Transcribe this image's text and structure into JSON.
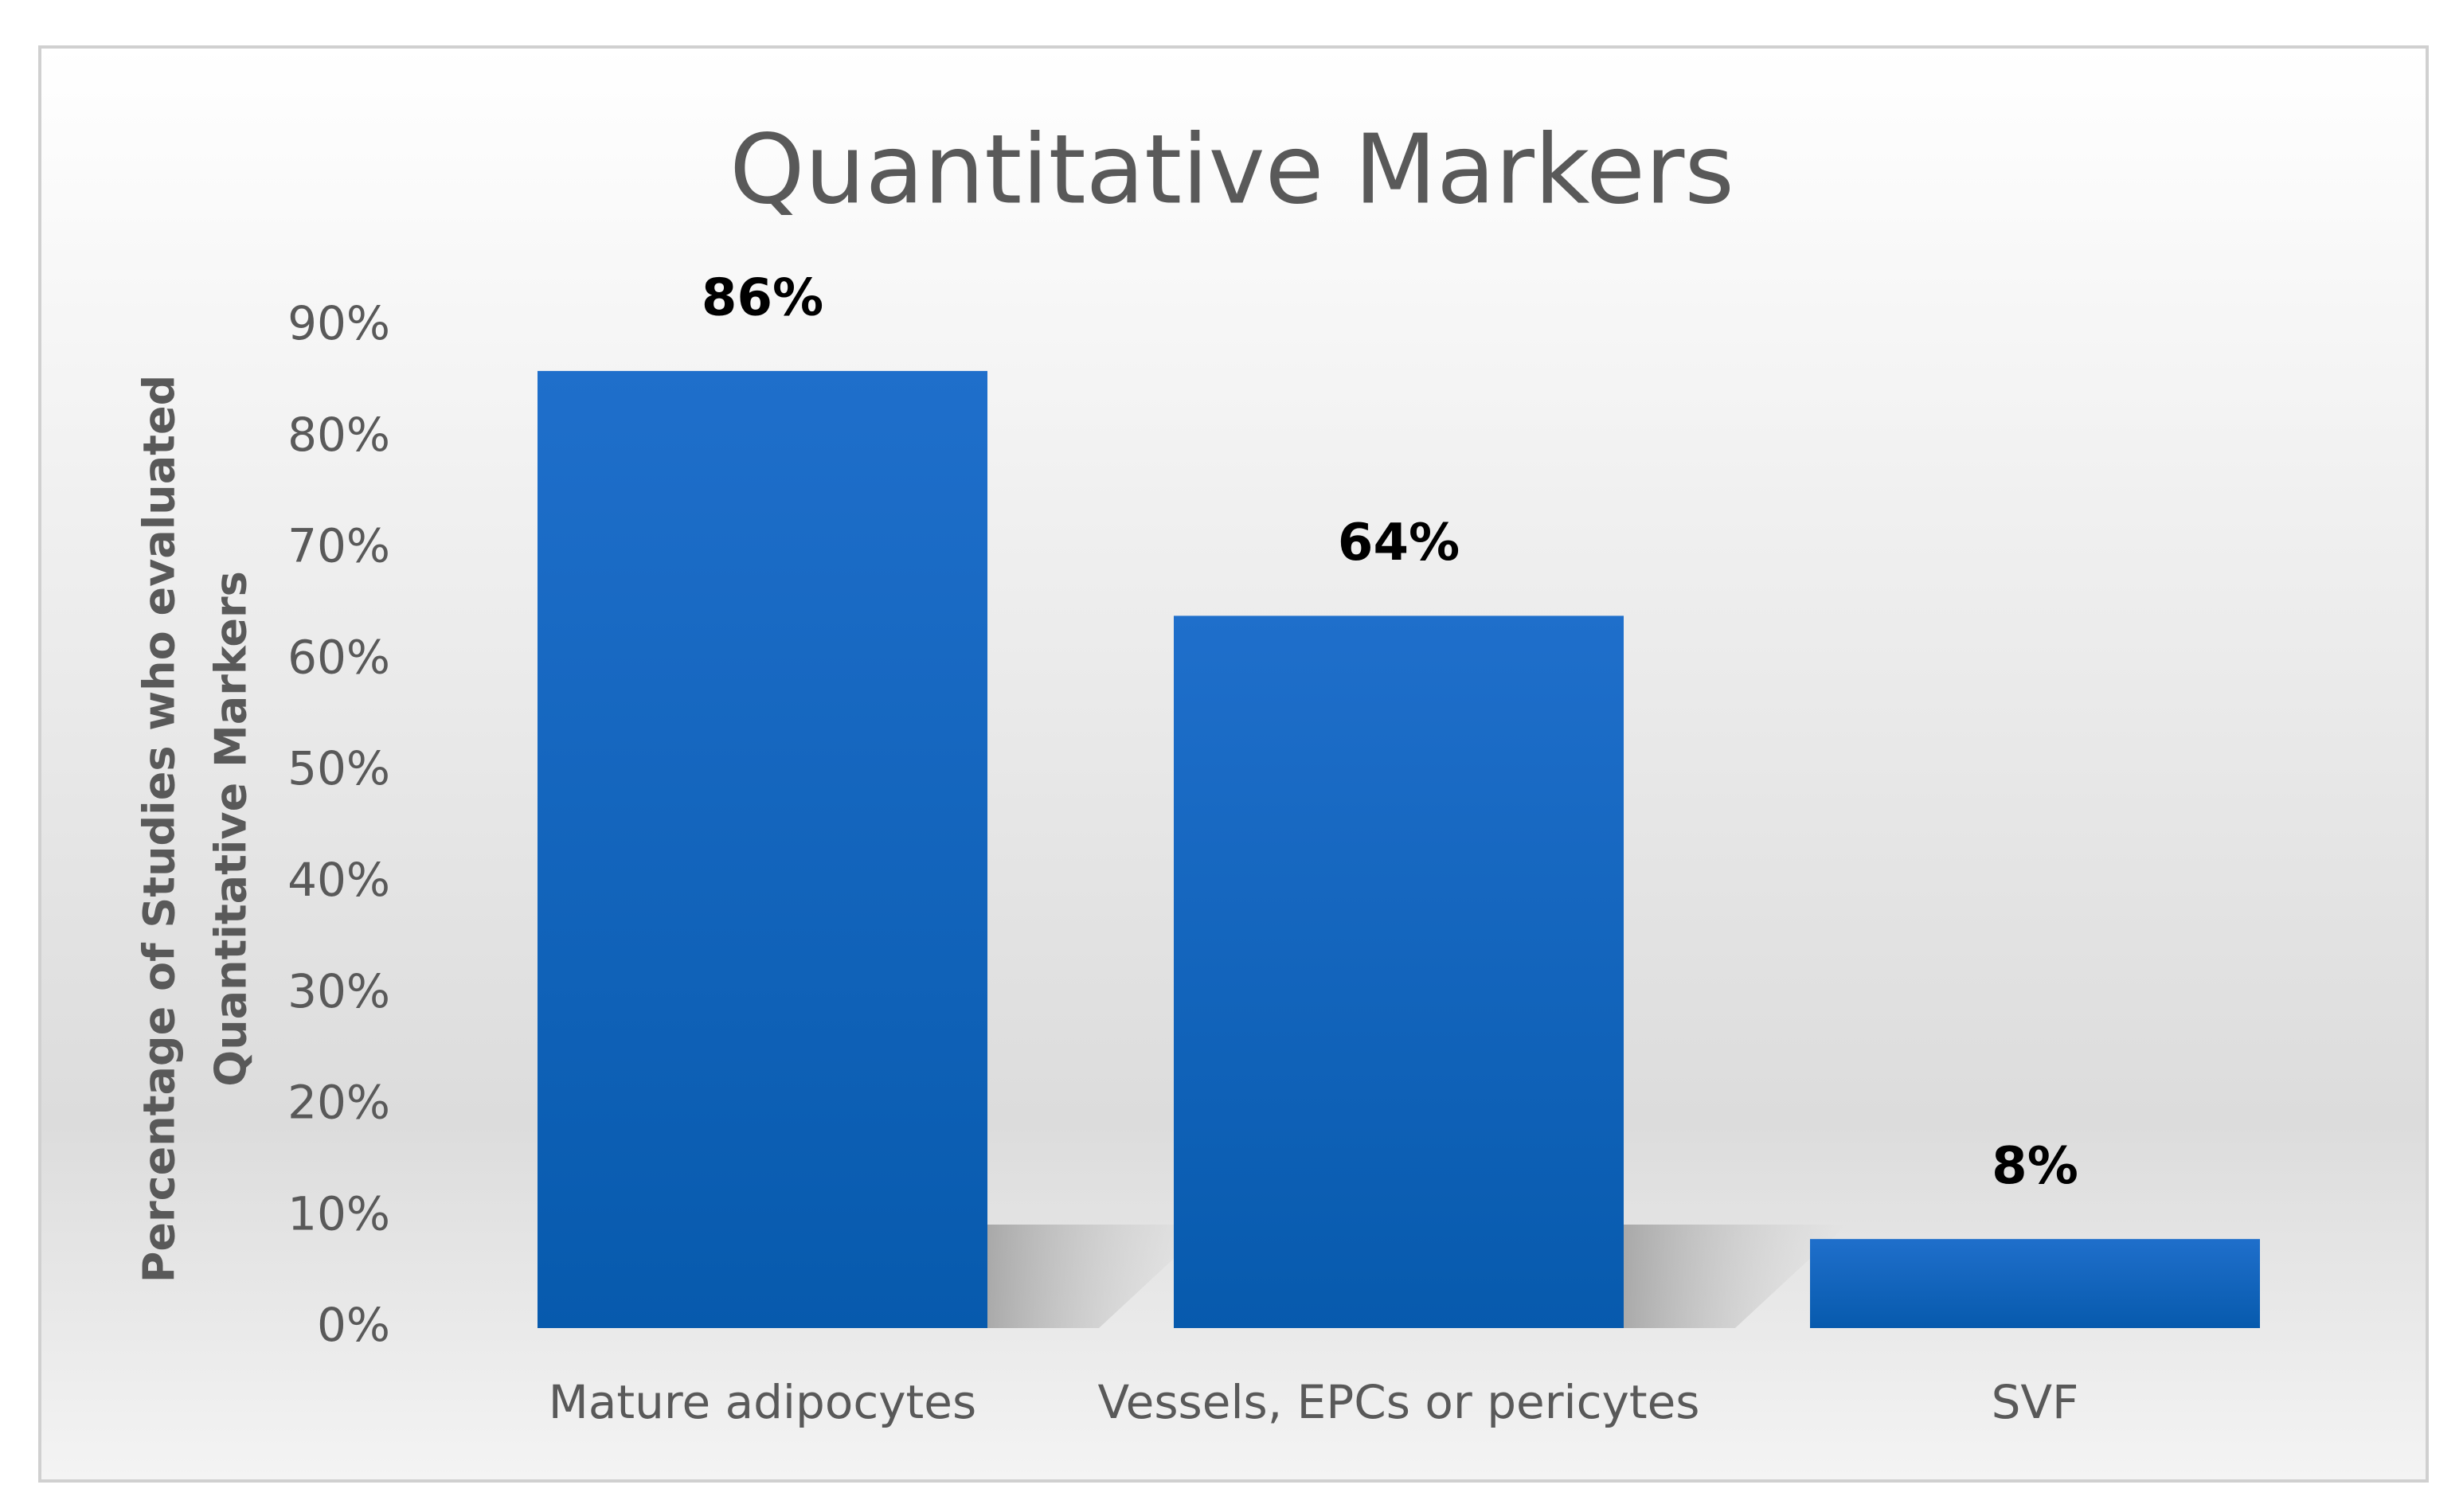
{
  "chart_data": {
    "type": "bar",
    "title": "Quantitative Markers",
    "y_label": [
      "Percentage of Studies who evaluated",
      "Quantitative Markers"
    ],
    "categories": [
      "Mature adipocytes",
      "Vessels, EPCs or pericytes",
      "SVF"
    ],
    "values": [
      86,
      64,
      8
    ],
    "value_labels": [
      "86%",
      "64%",
      "8%"
    ],
    "color": "#1565c0",
    "ylim": [
      0,
      90
    ],
    "yticks": [
      {
        "value": 0,
        "label": "0%"
      },
      {
        "value": 10,
        "label": "10%"
      },
      {
        "value": 20,
        "label": "20%"
      },
      {
        "value": 30,
        "label": "30%"
      },
      {
        "value": 40,
        "label": "40%"
      },
      {
        "value": 50,
        "label": "50%"
      },
      {
        "value": 60,
        "label": "60%"
      },
      {
        "value": 70,
        "label": "70%"
      },
      {
        "value": 80,
        "label": "80%"
      },
      {
        "value": 90,
        "label": "90%"
      }
    ],
    "grid": false
  }
}
